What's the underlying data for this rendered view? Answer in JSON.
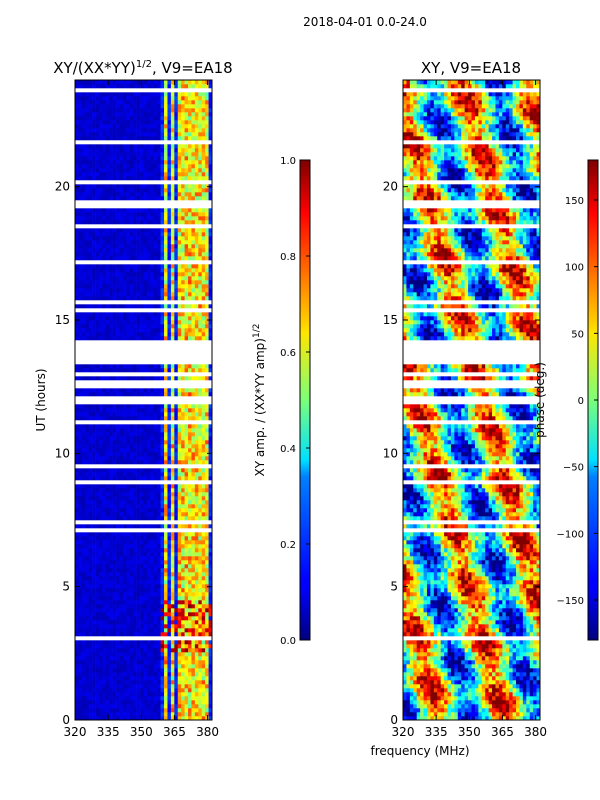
{
  "suptitle": "2018-04-01 0.0-24.0",
  "chart_data": [
    {
      "type": "heatmap",
      "title_base": "XY/(XX*YY)",
      "title_exp": "1/2",
      "title_suffix": ", V9=EA18",
      "xlabel": "",
      "ylabel": "UT (hours)",
      "xlim": [
        320,
        382
      ],
      "ylim": [
        0,
        24
      ],
      "xticks": [
        "320",
        "335",
        "350",
        "365",
        "380"
      ],
      "yticks": [
        "0",
        "5",
        "10",
        "15",
        "20"
      ],
      "xtick_values": [
        320,
        335,
        350,
        365,
        380
      ],
      "ytick_values": [
        0,
        5,
        10,
        15,
        20
      ],
      "colorbar": {
        "label_base": "XY amp. / (XX*YY amp)",
        "label_exp": "1/2",
        "range": [
          0.0,
          1.0
        ],
        "ticks": [
          "0.0",
          "0.2",
          "0.4",
          "0.6",
          "0.8",
          "1.0"
        ],
        "tick_values": [
          0.0,
          0.2,
          0.4,
          0.6,
          0.8,
          1.0
        ]
      },
      "colormap": "jet",
      "description": "normalized amplitude: mostly near 0 across band, elevated (~0.4-0.9) in channels ~360-380 MHz",
      "high_channels_mhz": [
        361,
        364,
        367,
        370,
        373,
        376,
        379
      ],
      "white_gap_hours": [
        [
          13.3,
          14.3
        ],
        [
          11.9,
          12.2
        ],
        [
          12.5,
          12.8
        ],
        [
          19.2,
          19.5
        ],
        [
          20.1,
          20.3
        ]
      ]
    },
    {
      "type": "heatmap",
      "title": "XY, V9=EA18",
      "xlabel": "frequency (MHz)",
      "ylabel": "",
      "xlim": [
        320,
        382
      ],
      "ylim": [
        0,
        24
      ],
      "xticks": [
        "320",
        "335",
        "350",
        "365",
        "380"
      ],
      "yticks": [
        "0",
        "5",
        "10",
        "15",
        "20"
      ],
      "xtick_values": [
        320,
        335,
        350,
        365,
        380
      ],
      "ytick_values": [
        0,
        5,
        10,
        15,
        20
      ],
      "colorbar": {
        "label": "phase (deg.)",
        "range": [
          -180,
          180
        ],
        "ticks": [
          "−150",
          "−100",
          "−50",
          "0",
          "50",
          "100",
          "150"
        ],
        "tick_values": [
          -150,
          -100,
          -50,
          0,
          50,
          100,
          150
        ]
      },
      "colormap": "jet",
      "description": "XY phase in degrees, varying strongly across time and frequency",
      "white_gap_hours": [
        [
          13.3,
          14.3
        ],
        [
          11.9,
          12.2
        ],
        [
          12.5,
          12.8
        ],
        [
          19.2,
          19.5
        ],
        [
          20.1,
          20.3
        ]
      ]
    }
  ],
  "colors": {
    "jet_low": "#00007f",
    "jet_high": "#7f0000",
    "axis": "#000000",
    "background": "#ffffff"
  }
}
